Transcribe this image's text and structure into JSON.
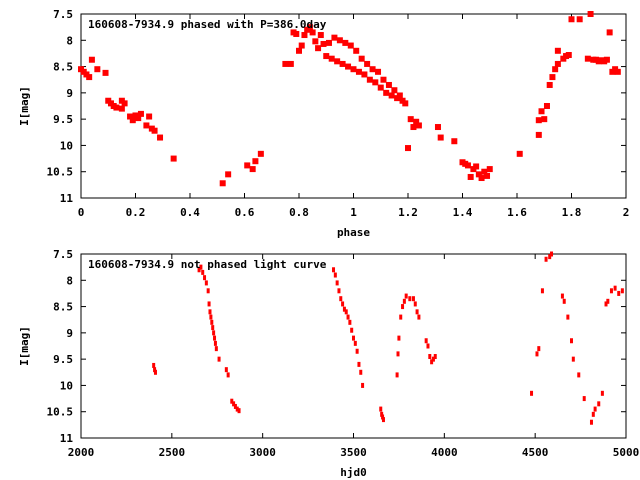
{
  "colors": {
    "points": "#ff0000",
    "axes": "#000000",
    "background": "#ffffff"
  },
  "chart_data": [
    {
      "type": "scatter",
      "title": "160608-7934.9 phased with P=386.0day",
      "xlabel": "phase",
      "ylabel": "I[mag]",
      "xlim": [
        0,
        2
      ],
      "ylim": [
        11,
        7.5
      ],
      "y_inverted": true,
      "grid": false,
      "xticks": [
        "0",
        "0.2",
        "0.4",
        "0.6",
        "0.8",
        "1",
        "1.2",
        "1.4",
        "1.6",
        "1.8",
        "2"
      ],
      "yticks": [
        "7.5",
        "8",
        "8.5",
        "9",
        "9.5",
        "10",
        "10.5",
        "11"
      ],
      "marker": "square",
      "series": [
        {
          "points": [
            [
              0.0,
              8.55
            ],
            [
              0.01,
              8.6
            ],
            [
              0.02,
              8.65
            ],
            [
              0.03,
              8.7
            ],
            [
              0.04,
              8.37
            ],
            [
              0.06,
              8.55
            ],
            [
              0.09,
              8.62
            ],
            [
              0.1,
              9.15
            ],
            [
              0.11,
              9.2
            ],
            [
              0.12,
              9.25
            ],
            [
              0.13,
              9.28
            ],
            [
              0.15,
              9.3
            ],
            [
              0.15,
              9.15
            ],
            [
              0.16,
              9.2
            ],
            [
              0.18,
              9.45
            ],
            [
              0.19,
              9.52
            ],
            [
              0.2,
              9.43
            ],
            [
              0.21,
              9.48
            ],
            [
              0.22,
              9.4
            ],
            [
              0.24,
              9.62
            ],
            [
              0.25,
              9.45
            ],
            [
              0.26,
              9.68
            ],
            [
              0.27,
              9.72
            ],
            [
              0.29,
              9.85
            ],
            [
              0.34,
              10.25
            ],
            [
              0.52,
              10.72
            ],
            [
              0.54,
              10.55
            ],
            [
              0.61,
              10.38
            ],
            [
              0.63,
              10.45
            ],
            [
              0.64,
              10.3
            ],
            [
              0.66,
              10.16
            ],
            [
              0.75,
              8.45
            ],
            [
              0.77,
              8.45
            ],
            [
              0.78,
              7.85
            ],
            [
              0.79,
              7.88
            ],
            [
              0.8,
              8.2
            ],
            [
              0.81,
              8.1
            ],
            [
              0.82,
              7.9
            ],
            [
              0.83,
              7.8
            ],
            [
              0.84,
              7.75
            ],
            [
              0.85,
              7.85
            ],
            [
              0.86,
              8.02
            ],
            [
              0.87,
              8.15
            ],
            [
              0.88,
              7.9
            ],
            [
              0.89,
              8.07
            ],
            [
              0.9,
              8.3
            ],
            [
              0.91,
              8.05
            ],
            [
              0.92,
              8.35
            ],
            [
              0.93,
              7.95
            ],
            [
              0.94,
              8.4
            ],
            [
              0.95,
              8.0
            ],
            [
              0.96,
              8.45
            ],
            [
              0.97,
              8.05
            ],
            [
              0.98,
              8.5
            ],
            [
              0.99,
              8.1
            ],
            [
              1.0,
              8.55
            ],
            [
              1.01,
              8.2
            ],
            [
              1.02,
              8.6
            ],
            [
              1.03,
              8.35
            ],
            [
              1.04,
              8.65
            ],
            [
              1.05,
              8.45
            ],
            [
              1.06,
              8.75
            ],
            [
              1.07,
              8.55
            ],
            [
              1.08,
              8.8
            ],
            [
              1.09,
              8.6
            ],
            [
              1.1,
              8.9
            ],
            [
              1.11,
              8.75
            ],
            [
              1.12,
              9.0
            ],
            [
              1.13,
              8.85
            ],
            [
              1.14,
              9.05
            ],
            [
              1.15,
              8.95
            ],
            [
              1.16,
              9.1
            ],
            [
              1.17,
              9.05
            ],
            [
              1.18,
              9.15
            ],
            [
              1.19,
              9.2
            ],
            [
              1.2,
              10.05
            ],
            [
              1.21,
              9.5
            ],
            [
              1.22,
              9.65
            ],
            [
              1.23,
              9.55
            ],
            [
              1.24,
              9.62
            ],
            [
              1.31,
              9.65
            ],
            [
              1.32,
              9.85
            ],
            [
              1.37,
              9.92
            ],
            [
              1.4,
              10.32
            ],
            [
              1.41,
              10.35
            ],
            [
              1.42,
              10.38
            ],
            [
              1.43,
              10.6
            ],
            [
              1.44,
              10.45
            ],
            [
              1.45,
              10.4
            ],
            [
              1.46,
              10.55
            ],
            [
              1.47,
              10.62
            ],
            [
              1.48,
              10.5
            ],
            [
              1.49,
              10.58
            ],
            [
              1.5,
              10.45
            ],
            [
              1.61,
              10.16
            ],
            [
              1.68,
              9.8
            ],
            [
              1.68,
              9.52
            ],
            [
              1.69,
              9.35
            ],
            [
              1.7,
              9.5
            ],
            [
              1.71,
              9.25
            ],
            [
              1.72,
              8.85
            ],
            [
              1.73,
              8.7
            ],
            [
              1.74,
              8.55
            ],
            [
              1.75,
              8.45
            ],
            [
              1.75,
              8.2
            ],
            [
              1.77,
              8.35
            ],
            [
              1.78,
              8.3
            ],
            [
              1.79,
              8.28
            ],
            [
              1.8,
              7.6
            ],
            [
              1.83,
              7.6
            ],
            [
              1.86,
              8.35
            ],
            [
              1.87,
              7.5
            ],
            [
              1.88,
              8.37
            ],
            [
              1.89,
              8.37
            ],
            [
              1.9,
              8.4
            ],
            [
              1.91,
              8.38
            ],
            [
              1.92,
              8.4
            ],
            [
              1.93,
              8.37
            ],
            [
              1.94,
              7.85
            ],
            [
              1.95,
              8.6
            ],
            [
              1.96,
              8.55
            ],
            [
              1.97,
              8.6
            ]
          ]
        }
      ]
    },
    {
      "type": "scatter",
      "title": "160608-7934.9 not phased light curve",
      "xlabel": "hjd0",
      "ylabel": "I[mag]",
      "xlim": [
        2000,
        5000
      ],
      "ylim": [
        11,
        7.5
      ],
      "y_inverted": true,
      "grid": false,
      "xticks": [
        "2000",
        "2500",
        "3000",
        "3500",
        "4000",
        "4500",
        "5000"
      ],
      "yticks": [
        "7.5",
        "8",
        "8.5",
        "9",
        "9.5",
        "10",
        "10.5",
        "11"
      ],
      "marker": "dot",
      "series": [
        {
          "points": [
            [
              2400,
              9.62
            ],
            [
              2405,
              9.7
            ],
            [
              2410,
              9.75
            ],
            [
              2650,
              7.8
            ],
            [
              2660,
              7.75
            ],
            [
              2670,
              7.85
            ],
            [
              2680,
              7.95
            ],
            [
              2690,
              8.05
            ],
            [
              2700,
              8.2
            ],
            [
              2705,
              8.45
            ],
            [
              2710,
              8.6
            ],
            [
              2715,
              8.7
            ],
            [
              2720,
              8.8
            ],
            [
              2725,
              8.9
            ],
            [
              2730,
              9.0
            ],
            [
              2735,
              9.1
            ],
            [
              2740,
              9.2
            ],
            [
              2745,
              9.3
            ],
            [
              2760,
              9.5
            ],
            [
              2800,
              9.7
            ],
            [
              2810,
              9.8
            ],
            [
              2830,
              10.3
            ],
            [
              2840,
              10.35
            ],
            [
              2850,
              10.4
            ],
            [
              2860,
              10.45
            ],
            [
              2870,
              10.48
            ],
            [
              3390,
              7.8
            ],
            [
              3400,
              7.9
            ],
            [
              3410,
              8.05
            ],
            [
              3420,
              8.2
            ],
            [
              3430,
              8.35
            ],
            [
              3440,
              8.45
            ],
            [
              3450,
              8.55
            ],
            [
              3460,
              8.6
            ],
            [
              3470,
              8.7
            ],
            [
              3480,
              8.8
            ],
            [
              3490,
              8.95
            ],
            [
              3500,
              9.1
            ],
            [
              3510,
              9.2
            ],
            [
              3520,
              9.35
            ],
            [
              3530,
              9.6
            ],
            [
              3540,
              9.75
            ],
            [
              3550,
              10.0
            ],
            [
              3650,
              10.45
            ],
            [
              3655,
              10.55
            ],
            [
              3660,
              10.6
            ],
            [
              3665,
              10.65
            ],
            [
              3740,
              9.8
            ],
            [
              3745,
              9.4
            ],
            [
              3750,
              9.1
            ],
            [
              3760,
              8.7
            ],
            [
              3770,
              8.5
            ],
            [
              3780,
              8.4
            ],
            [
              3790,
              8.3
            ],
            [
              3810,
              8.35
            ],
            [
              3830,
              8.35
            ],
            [
              3840,
              8.45
            ],
            [
              3850,
              8.6
            ],
            [
              3860,
              8.7
            ],
            [
              3900,
              9.15
            ],
            [
              3910,
              9.25
            ],
            [
              3920,
              9.45
            ],
            [
              3930,
              9.55
            ],
            [
              3940,
              9.5
            ],
            [
              3950,
              9.45
            ],
            [
              4480,
              10.15
            ],
            [
              4510,
              9.4
            ],
            [
              4520,
              9.3
            ],
            [
              4540,
              8.2
            ],
            [
              4560,
              7.6
            ],
            [
              4580,
              7.55
            ],
            [
              4590,
              7.5
            ],
            [
              4650,
              8.3
            ],
            [
              4660,
              8.4
            ],
            [
              4680,
              8.7
            ],
            [
              4700,
              9.15
            ],
            [
              4710,
              9.5
            ],
            [
              4740,
              9.8
            ],
            [
              4770,
              10.25
            ],
            [
              4810,
              10.7
            ],
            [
              4820,
              10.55
            ],
            [
              4830,
              10.45
            ],
            [
              4850,
              10.35
            ],
            [
              4870,
              10.15
            ],
            [
              4890,
              8.45
            ],
            [
              4900,
              8.4
            ],
            [
              4920,
              8.2
            ],
            [
              4940,
              8.15
            ],
            [
              4960,
              8.25
            ],
            [
              4980,
              8.2
            ]
          ]
        }
      ]
    }
  ]
}
